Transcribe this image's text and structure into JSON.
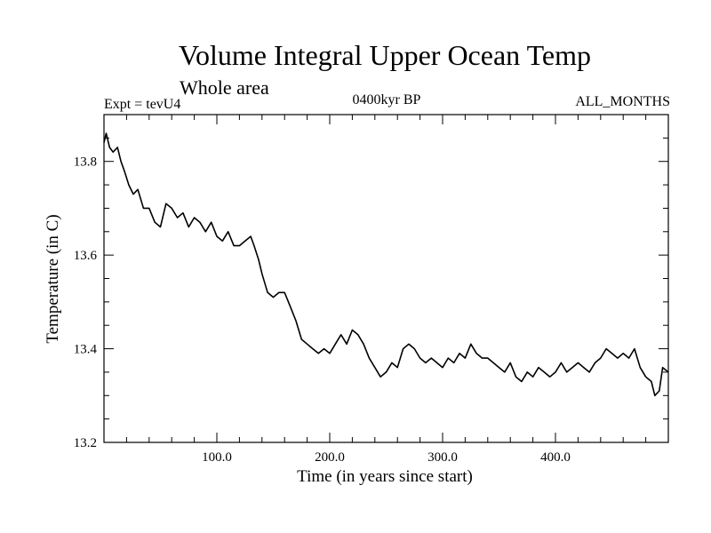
{
  "chart_data": {
    "type": "line",
    "title": "Volume Integral Upper Ocean Temp",
    "subtitle": "Whole area",
    "annotations": {
      "left": "Expt = tevU4",
      "center": "0400kyr BP",
      "right": "ALL_MONTHS"
    },
    "xlabel": "Time (in years since start)",
    "ylabel": "Temperature (in C)",
    "xlim": [
      0,
      500
    ],
    "ylim": [
      13.2,
      13.9
    ],
    "xticks": [
      100,
      200,
      300,
      400
    ],
    "xtick_labels": [
      "100.0",
      "200.0",
      "300.0",
      "400.0"
    ],
    "yticks": [
      13.2,
      13.4,
      13.6,
      13.8
    ],
    "ytick_labels": [
      "13.2",
      "13.4",
      "13.6",
      "13.8"
    ],
    "grid": false,
    "series": [
      {
        "color": "#000000",
        "x": [
          0,
          2,
          5,
          8,
          12,
          15,
          18,
          22,
          26,
          30,
          35,
          40,
          45,
          50,
          55,
          60,
          65,
          70,
          75,
          80,
          85,
          90,
          95,
          100,
          105,
          110,
          115,
          120,
          125,
          130,
          133,
          137,
          140,
          145,
          150,
          155,
          160,
          165,
          170,
          175,
          180,
          185,
          190,
          195,
          200,
          205,
          210,
          215,
          220,
          225,
          230,
          235,
          240,
          245,
          250,
          255,
          260,
          265,
          270,
          275,
          280,
          285,
          290,
          295,
          300,
          305,
          310,
          315,
          320,
          325,
          330,
          335,
          340,
          345,
          350,
          355,
          360,
          365,
          370,
          375,
          380,
          385,
          390,
          395,
          400,
          405,
          410,
          415,
          420,
          425,
          430,
          435,
          440,
          445,
          450,
          455,
          460,
          465,
          470,
          475,
          480,
          485,
          488,
          492,
          495,
          500
        ],
        "values": [
          13.84,
          13.86,
          13.83,
          13.82,
          13.83,
          13.8,
          13.78,
          13.75,
          13.73,
          13.74,
          13.7,
          13.7,
          13.67,
          13.66,
          13.71,
          13.7,
          13.68,
          13.69,
          13.66,
          13.68,
          13.67,
          13.65,
          13.67,
          13.64,
          13.63,
          13.65,
          13.62,
          13.62,
          13.63,
          13.64,
          13.62,
          13.59,
          13.56,
          13.52,
          13.51,
          13.52,
          13.52,
          13.49,
          13.46,
          13.42,
          13.41,
          13.4,
          13.39,
          13.4,
          13.39,
          13.41,
          13.43,
          13.41,
          13.44,
          13.43,
          13.41,
          13.38,
          13.36,
          13.34,
          13.35,
          13.37,
          13.36,
          13.4,
          13.41,
          13.4,
          13.38,
          13.37,
          13.38,
          13.37,
          13.36,
          13.38,
          13.37,
          13.39,
          13.38,
          13.41,
          13.39,
          13.38,
          13.38,
          13.37,
          13.36,
          13.35,
          13.37,
          13.34,
          13.33,
          13.35,
          13.34,
          13.36,
          13.35,
          13.34,
          13.35,
          13.37,
          13.35,
          13.36,
          13.37,
          13.36,
          13.35,
          13.37,
          13.38,
          13.4,
          13.39,
          13.38,
          13.39,
          13.38,
          13.4,
          13.36,
          13.34,
          13.33,
          13.3,
          13.31,
          13.36,
          13.35
        ]
      }
    ]
  }
}
